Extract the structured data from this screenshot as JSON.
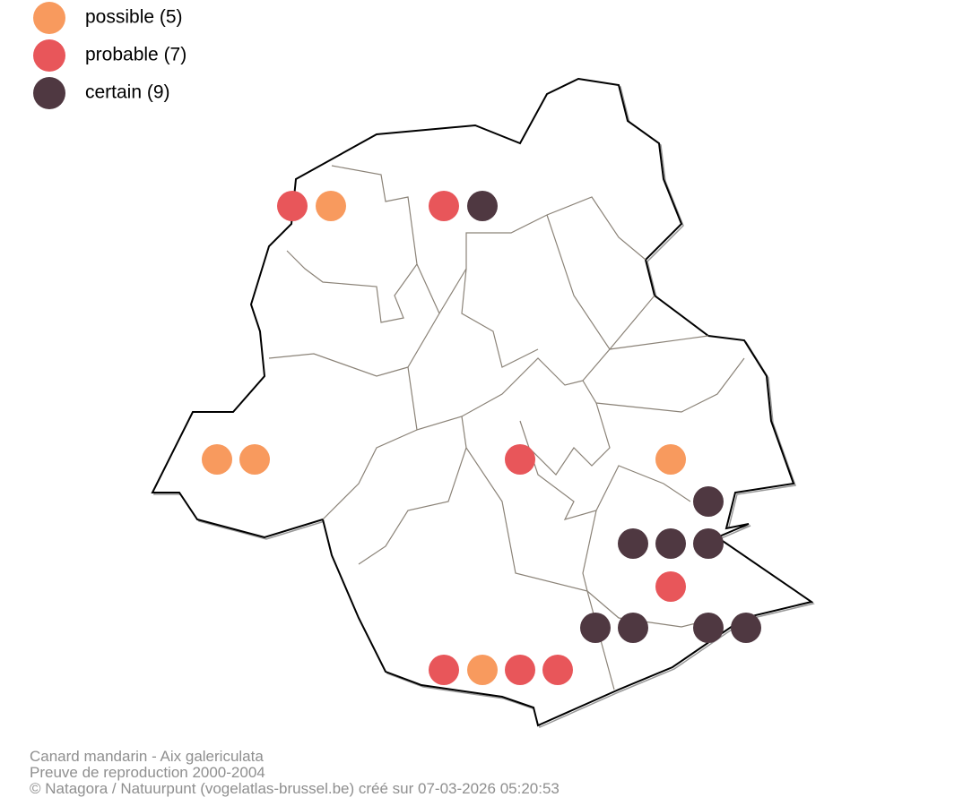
{
  "legend": [
    {
      "label": "possible (5)",
      "color": "#f89a5e"
    },
    {
      "label": "probable (7)",
      "color": "#e8565a"
    },
    {
      "label": "certain (9)",
      "color": "#4f3841"
    }
  ],
  "footer": [
    "Canard mandarin - Aix galericulata",
    "Preuve de reproduction 2000-2004",
    "© Natagora / Natuurpunt (vogelatlas-brussel.be) créé sur 07-03-2026 05:20:53"
  ]
}
